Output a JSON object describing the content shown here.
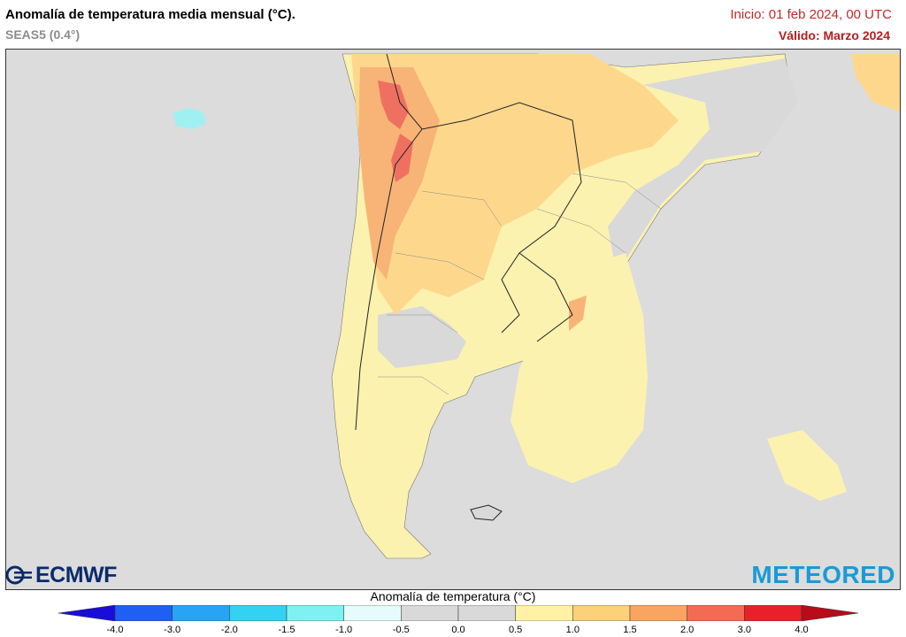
{
  "header": {
    "title": "Anomalía de temperatura media mensual (°C).",
    "model": "SEAS5 (0.4°)",
    "init": "Inicio: 01 feb 2024, 00 UTC",
    "valid": "Válido: Marzo 2024"
  },
  "logos": {
    "left": "ECMWF",
    "right": "METEORED"
  },
  "legend": {
    "title": "Anomalía de temperatura (°C)",
    "ticks": [
      "-4.0",
      "-3.0",
      "-2.0",
      "-1.5",
      "-1.0",
      "-0.5",
      "0.0",
      "0.5",
      "1.0",
      "1.5",
      "2.0",
      "3.0",
      "4.0"
    ],
    "colors": [
      "#1a0dd9",
      "#1f5ff2",
      "#29a3f5",
      "#32d2f0",
      "#7ef2f2",
      "#e6fbfb",
      "#d9d9d9",
      "#d9d9d9",
      "#fff2a6",
      "#fdd17a",
      "#f9a461",
      "#f56a52",
      "#e8202a",
      "#b80c1a"
    ]
  },
  "map": {
    "colors": {
      "ocean": "#dcdcdc",
      "neutral": "#d9d9d9",
      "light_yellow": "#fbf2b0",
      "yellow": "#fdd88c",
      "orange": "#f7b476",
      "red": "#ef7060",
      "cyan": "#9ff1f1"
    }
  }
}
